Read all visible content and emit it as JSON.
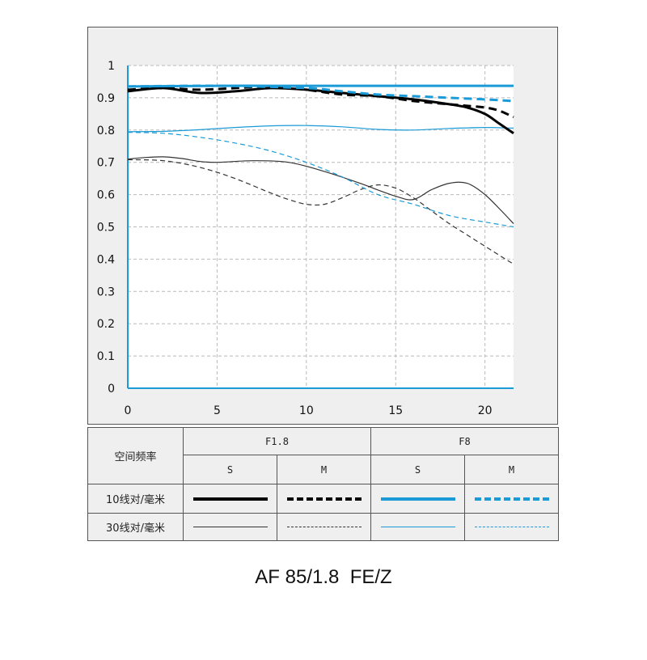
{
  "chart_data": {
    "type": "line",
    "title": "",
    "xlabel": "",
    "ylabel": "",
    "xlim": [
      0,
      21.6
    ],
    "ylim": [
      0,
      1
    ],
    "x_ticks": [
      "0",
      "5",
      "10",
      "15",
      "20"
    ],
    "y_ticks": [
      "0",
      "0.1",
      "0.2",
      "0.3",
      "0.4",
      "0.5",
      "0.6",
      "0.7",
      "0.8",
      "0.9",
      "1"
    ],
    "grid": true,
    "series": [
      {
        "color": "#000000",
        "style": "solid",
        "weight": "bold",
        "x": [
          0,
          2,
          4,
          6,
          8,
          10,
          12,
          14,
          16,
          18,
          19,
          20,
          20.8,
          21.6
        ],
        "y": [
          0.92,
          0.93,
          0.915,
          0.92,
          0.93,
          0.925,
          0.915,
          0.905,
          0.895,
          0.88,
          0.87,
          0.85,
          0.82,
          0.79
        ]
      },
      {
        "color": "#000000",
        "style": "dashed",
        "weight": "bold",
        "x": [
          0,
          2,
          4,
          6,
          8,
          10,
          12,
          14,
          16,
          18,
          19,
          20,
          20.8,
          21.6
        ],
        "y": [
          0.925,
          0.93,
          0.925,
          0.93,
          0.935,
          0.925,
          0.91,
          0.905,
          0.89,
          0.88,
          0.875,
          0.87,
          0.86,
          0.84
        ]
      },
      {
        "color": "#1a9ad6",
        "style": "solid",
        "weight": "bold",
        "x": [
          0,
          5,
          10,
          15,
          20,
          21.6
        ],
        "y": [
          0.935,
          0.937,
          0.937,
          0.937,
          0.937,
          0.937
        ]
      },
      {
        "color": "#1a9ad6",
        "style": "dashed",
        "weight": "bold",
        "x": [
          0,
          5,
          10,
          12,
          14,
          16,
          18,
          20,
          21.6
        ],
        "y": [
          0.935,
          0.937,
          0.93,
          0.92,
          0.91,
          0.905,
          0.9,
          0.895,
          0.89
        ]
      },
      {
        "color": "#333333",
        "style": "solid",
        "weight": "thin",
        "x": [
          0,
          1,
          2,
          3,
          4,
          5,
          7,
          9,
          11,
          13,
          15,
          16,
          17,
          18,
          19,
          20,
          21,
          21.6
        ],
        "y": [
          0.71,
          0.715,
          0.717,
          0.712,
          0.703,
          0.7,
          0.705,
          0.7,
          0.672,
          0.635,
          0.595,
          0.585,
          0.615,
          0.635,
          0.635,
          0.6,
          0.545,
          0.51
        ]
      },
      {
        "color": "#333333",
        "style": "dashed",
        "weight": "thin",
        "x": [
          0,
          2,
          4,
          6,
          8,
          9,
          10,
          11,
          12,
          13,
          14,
          15,
          16,
          17,
          18,
          19,
          20,
          21,
          21.6
        ],
        "y": [
          0.708,
          0.705,
          0.685,
          0.65,
          0.605,
          0.585,
          0.57,
          0.57,
          0.59,
          0.615,
          0.63,
          0.62,
          0.59,
          0.55,
          0.51,
          0.475,
          0.44,
          0.405,
          0.385
        ]
      },
      {
        "color": "#1a9ad6",
        "style": "solid",
        "weight": "thin",
        "x": [
          0,
          2,
          4,
          6,
          8,
          10,
          12,
          14,
          16,
          18,
          20,
          21.6
        ],
        "y": [
          0.795,
          0.796,
          0.801,
          0.808,
          0.813,
          0.814,
          0.81,
          0.802,
          0.8,
          0.805,
          0.808,
          0.806
        ]
      },
      {
        "color": "#1a9ad6",
        "style": "dashed",
        "weight": "thin",
        "x": [
          0,
          2,
          4,
          6,
          8,
          10,
          12,
          14,
          16,
          18,
          20,
          21.6
        ],
        "y": [
          0.793,
          0.79,
          0.778,
          0.76,
          0.735,
          0.7,
          0.655,
          0.6,
          0.57,
          0.535,
          0.515,
          0.5
        ]
      }
    ]
  },
  "legend": {
    "header_label": "空间频率",
    "f18_label": "F1.8",
    "f8_label": "F8",
    "s_label": "S",
    "m_label": "M",
    "row10_label": "10线对/毫米",
    "row30_label": "30线对/毫米",
    "colors": {
      "black": "#000000",
      "gray": "#333333",
      "blue": "#1a9ad6"
    }
  },
  "caption": "AF 85/1.8  FE/Z"
}
